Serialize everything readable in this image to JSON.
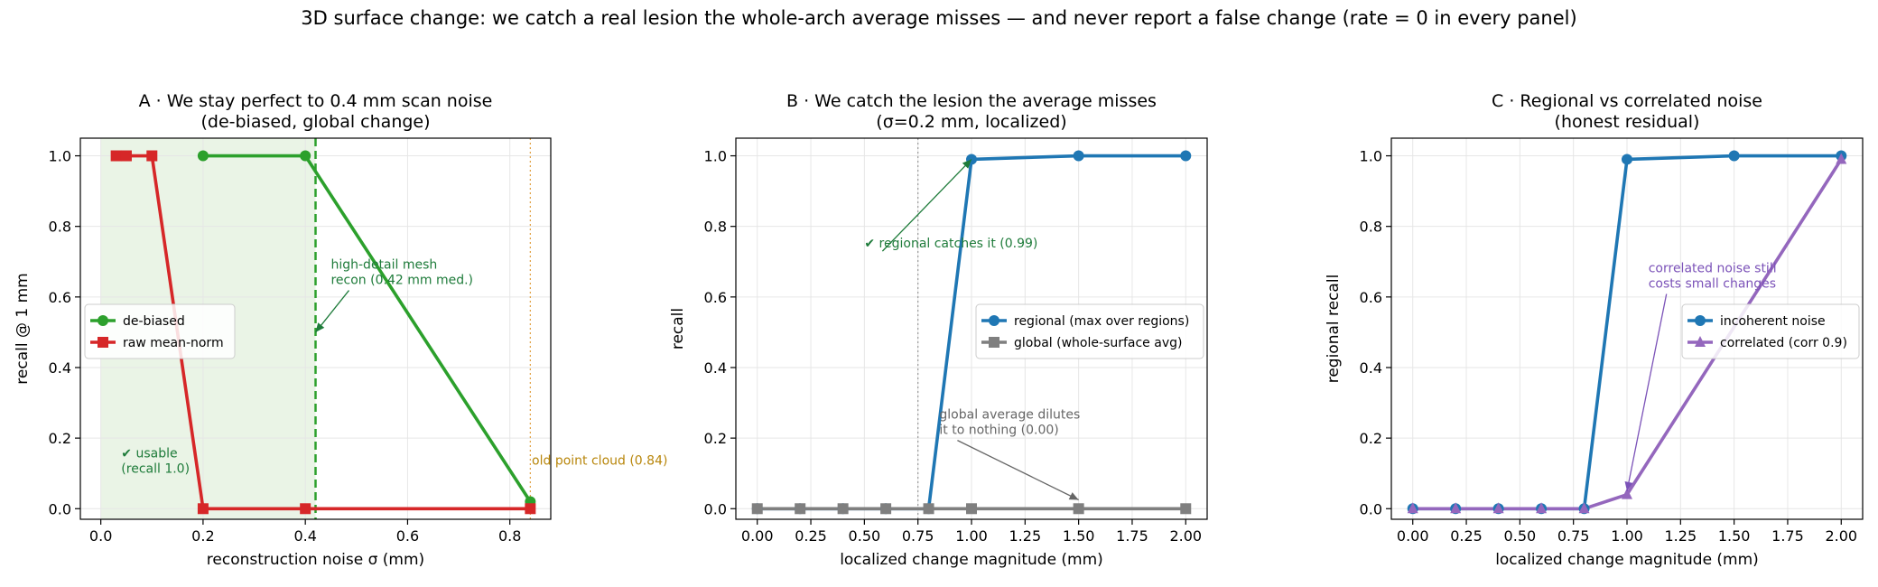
{
  "suptitle": "3D surface change: we catch a real lesion the whole-arch average misses — and never report a false change (rate = 0 in every panel)",
  "colors": {
    "green": "#2ca02c",
    "red": "#d62728",
    "blue": "#1f77b4",
    "gray": "#7f7f7f",
    "purple": "#9467bd",
    "annot_green": "#1e7b3a",
    "annot_gray": "#666666",
    "annot_orange": "#b8860b",
    "annot_purple": "#7b52b8",
    "shade": "#eaf4e6"
  },
  "chart_data": [
    {
      "id": "A",
      "type": "line",
      "title_line1": "A · We stay perfect to 0.4 mm scan noise",
      "title_line2": "(de-biased, global change)",
      "xlabel": "reconstruction noise σ (mm)",
      "ylabel": "recall @ 1 mm",
      "xlim": [
        -0.04,
        0.88
      ],
      "ylim": [
        -0.03,
        1.05
      ],
      "xticks": [
        0.0,
        0.2,
        0.4,
        0.6,
        0.8
      ],
      "xtick_labels": [
        "0.0",
        "0.2",
        "0.4",
        "0.6",
        "0.8"
      ],
      "yticks": [
        0.0,
        0.2,
        0.4,
        0.6,
        0.8,
        1.0
      ],
      "ytick_labels": [
        "0.0",
        "0.2",
        "0.4",
        "0.6",
        "0.8",
        "1.0"
      ],
      "shaded_region": [
        0.0,
        0.42
      ],
      "vlines": [
        {
          "x": 0.42,
          "style": "dashed",
          "color": "#2ca02c"
        },
        {
          "x": 0.84,
          "style": "dotted",
          "color": "#e0a040"
        }
      ],
      "series": [
        {
          "name": "de-biased",
          "color": "#2ca02c",
          "marker": "circle",
          "x": [
            0.2,
            0.4,
            0.84
          ],
          "y": [
            1.0,
            1.0,
            0.02
          ]
        },
        {
          "name": "raw mean-norm",
          "color": "#d62728",
          "marker": "square",
          "x": [
            0.03,
            0.05,
            0.1,
            0.2,
            0.4,
            0.84
          ],
          "y": [
            1.0,
            1.0,
            1.0,
            0.0,
            0.0,
            0.0
          ]
        }
      ],
      "legend_position": "center-left",
      "annotations": [
        {
          "lines": [
            "high-detail mesh",
            "recon (0.42 mm med.)"
          ],
          "color": "#1e7b3a",
          "tx": 0.45,
          "ty": 0.68,
          "ax": 0.42,
          "ay": 0.5
        },
        {
          "lines": [
            "✔ usable",
            "(recall 1.0)"
          ],
          "color": "#1e7b3a",
          "tx": 0.04,
          "ty": 0.145
        },
        {
          "lines": [
            "old point cloud (0.84)"
          ],
          "color": "#b8860b",
          "tx": 0.843,
          "ty": 0.125
        }
      ]
    },
    {
      "id": "B",
      "type": "line",
      "title_line1": "B · We catch the lesion the average misses",
      "title_line2": "(σ=0.2 mm, localized)",
      "xlabel": "localized change magnitude (mm)",
      "ylabel": "recall",
      "xlim": [
        -0.1,
        2.1
      ],
      "ylim": [
        -0.03,
        1.05
      ],
      "xticks": [
        0.0,
        0.25,
        0.5,
        0.75,
        1.0,
        1.25,
        1.5,
        1.75,
        2.0
      ],
      "xtick_labels": [
        "0.00",
        "0.25",
        "0.50",
        "0.75",
        "1.00",
        "1.25",
        "1.50",
        "1.75",
        "2.00"
      ],
      "yticks": [
        0.0,
        0.2,
        0.4,
        0.6,
        0.8,
        1.0
      ],
      "ytick_labels": [
        "0.0",
        "0.2",
        "0.4",
        "0.6",
        "0.8",
        "1.0"
      ],
      "vlines": [
        {
          "x": 0.75,
          "style": "dotted",
          "color": "#999999"
        }
      ],
      "series": [
        {
          "name": "regional (max over regions)",
          "color": "#1f77b4",
          "marker": "circle",
          "x": [
            0.0,
            0.2,
            0.4,
            0.6,
            0.8,
            1.0,
            1.5,
            2.0
          ],
          "y": [
            0.0,
            0.0,
            0.0,
            0.0,
            0.0,
            0.99,
            1.0,
            1.0
          ]
        },
        {
          "name": "global (whole-surface avg)",
          "color": "#7f7f7f",
          "marker": "square",
          "x": [
            0.0,
            0.2,
            0.4,
            0.6,
            0.8,
            1.0,
            1.5,
            2.0
          ],
          "y": [
            0.0,
            0.0,
            0.0,
            0.0,
            0.0,
            0.0,
            0.0,
            0.0
          ]
        }
      ],
      "legend_position": "center-right",
      "annotations": [
        {
          "lines": [
            "✔ regional catches it (0.99)"
          ],
          "color": "#1e7b3a",
          "tx": 0.5,
          "ty": 0.74,
          "ax": 1.0,
          "ay": 0.99
        },
        {
          "lines": [
            "global average dilutes",
            "it to nothing (0.00)"
          ],
          "color": "#666666",
          "tx": 0.85,
          "ty": 0.255,
          "ax": 1.5,
          "ay": 0.025
        }
      ]
    },
    {
      "id": "C",
      "type": "line",
      "title_line1": "C · Regional vs correlated noise",
      "title_line2": "(honest residual)",
      "xlabel": "localized change magnitude (mm)",
      "ylabel": "regional recall",
      "xlim": [
        -0.1,
        2.1
      ],
      "ylim": [
        -0.03,
        1.05
      ],
      "xticks": [
        0.0,
        0.25,
        0.5,
        0.75,
        1.0,
        1.25,
        1.5,
        1.75,
        2.0
      ],
      "xtick_labels": [
        "0.00",
        "0.25",
        "0.50",
        "0.75",
        "1.00",
        "1.25",
        "1.50",
        "1.75",
        "2.00"
      ],
      "yticks": [
        0.0,
        0.2,
        0.4,
        0.6,
        0.8,
        1.0
      ],
      "ytick_labels": [
        "0.0",
        "0.2",
        "0.4",
        "0.6",
        "0.8",
        "1.0"
      ],
      "vlines": [],
      "series": [
        {
          "name": "incoherent noise",
          "color": "#1f77b4",
          "marker": "circle",
          "x": [
            0.0,
            0.2,
            0.4,
            0.6,
            0.8,
            1.0,
            1.5,
            2.0
          ],
          "y": [
            0.0,
            0.0,
            0.0,
            0.0,
            0.0,
            0.99,
            1.0,
            1.0
          ]
        },
        {
          "name": "correlated (corr 0.9)",
          "color": "#9467bd",
          "marker": "triangle",
          "x": [
            0.0,
            0.2,
            0.4,
            0.6,
            0.8,
            1.0,
            2.0
          ],
          "y": [
            0.0,
            0.0,
            0.0,
            0.0,
            0.0,
            0.04,
            0.99
          ]
        }
      ],
      "legend_position": "center-right",
      "annotations": [
        {
          "lines": [
            "correlated noise still",
            "costs small changes"
          ],
          "color": "#7b52b8",
          "tx": 1.1,
          "ty": 0.67,
          "ax": 1.0,
          "ay": 0.05
        }
      ]
    }
  ]
}
